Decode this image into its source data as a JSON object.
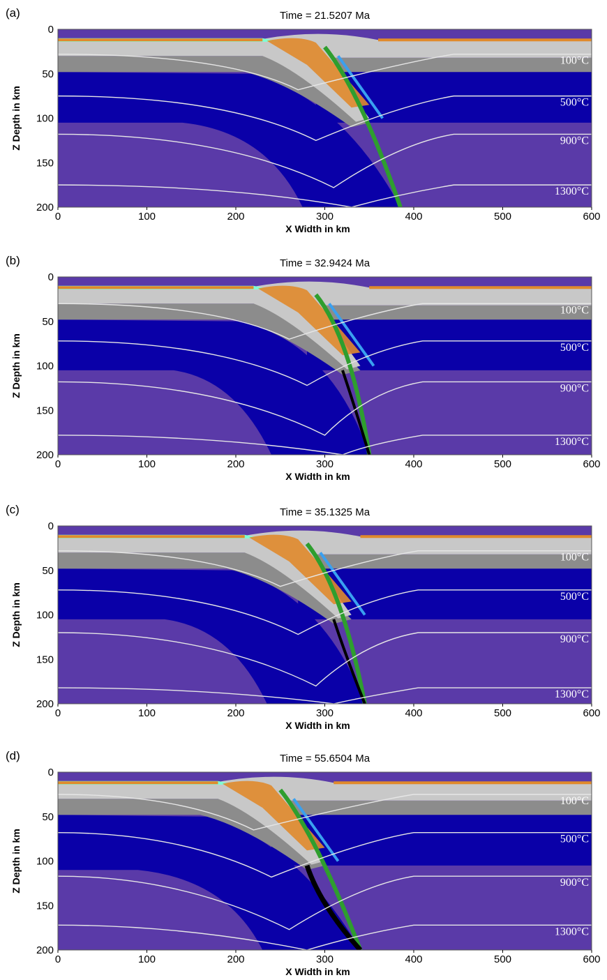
{
  "colors": {
    "water": "#7fffd4",
    "sediment": "#e08a2c",
    "upper_crust": "#c8c8c8",
    "lower_crust": "#8c8c8c",
    "lithosphere": "#0a00a8",
    "asthenosphere": "#5a3aa8",
    "green": "#2e9e2e",
    "blue_hydrated": "#3aa0f0",
    "isotherm": "#e6e6e6",
    "black_melt": "#000000"
  },
  "chart_data": [
    {
      "type": "heatmap",
      "panel_label": "(a)",
      "title": "Time = 21.5207 Ma",
      "xlabel": "X Width in km",
      "ylabel": "Z Depth in km",
      "xlim": [
        0,
        600
      ],
      "ylim": [
        0,
        200
      ],
      "xticks": [
        "0",
        "100",
        "200",
        "300",
        "400",
        "500",
        "600"
      ],
      "yticks": [
        "0",
        "50",
        "100",
        "150",
        "200"
      ],
      "isotherm_labels": [
        "100°C",
        "500°C",
        "900°C",
        "1300°C"
      ],
      "isotherm_depths": [
        28,
        75,
        118,
        175
      ],
      "slab_tip": [
        385,
        200
      ],
      "trench_x": 290,
      "lith_base_left": 105
    },
    {
      "type": "heatmap",
      "panel_label": "(b)",
      "title": "Time = 32.9424 Ma",
      "xlabel": "X Width in km",
      "ylabel": "Z Depth in km",
      "xlim": [
        0,
        600
      ],
      "ylim": [
        0,
        200
      ],
      "xticks": [
        "0",
        "100",
        "200",
        "300",
        "400",
        "500",
        "600"
      ],
      "yticks": [
        "0",
        "50",
        "100",
        "150",
        "200"
      ],
      "isotherm_labels": [
        "100°C",
        "500°C",
        "900°C",
        "1300°C"
      ],
      "isotherm_depths": [
        30,
        72,
        118,
        178
      ],
      "slab_tip": [
        350,
        200
      ],
      "trench_x": 280,
      "lith_base_left": 105
    },
    {
      "type": "heatmap",
      "panel_label": "(c)",
      "title": "Time = 35.1325 Ma",
      "xlabel": "X Width in km",
      "ylabel": "Z Depth in km",
      "xlim": [
        0,
        600
      ],
      "ylim": [
        0,
        200
      ],
      "xticks": [
        "0",
        "100",
        "200",
        "300",
        "400",
        "500",
        "600"
      ],
      "yticks": [
        "0",
        "50",
        "100",
        "150",
        "200"
      ],
      "isotherm_labels": [
        "100°C",
        "500°C",
        "900°C",
        "1300°C"
      ],
      "isotherm_depths": [
        28,
        72,
        120,
        182
      ],
      "slab_tip": [
        345,
        200
      ],
      "trench_x": 270,
      "lith_base_left": 105
    },
    {
      "type": "heatmap",
      "panel_label": "(d)",
      "title": "Time = 55.6504 Ma",
      "xlabel": "X Width in km",
      "ylabel": "Z Depth in km",
      "xlim": [
        0,
        600
      ],
      "ylim": [
        0,
        200
      ],
      "xticks": [
        "0",
        "100",
        "200",
        "300",
        "400",
        "500",
        "600"
      ],
      "yticks": [
        "0",
        "50",
        "100",
        "150",
        "200"
      ],
      "isotherm_labels": [
        "100°C",
        "500°C",
        "900°C",
        "1300°C"
      ],
      "isotherm_depths": [
        25,
        68,
        117,
        172
      ],
      "slab_tip": [
        340,
        200
      ],
      "trench_x": 240,
      "lith_base_left": 110
    }
  ]
}
